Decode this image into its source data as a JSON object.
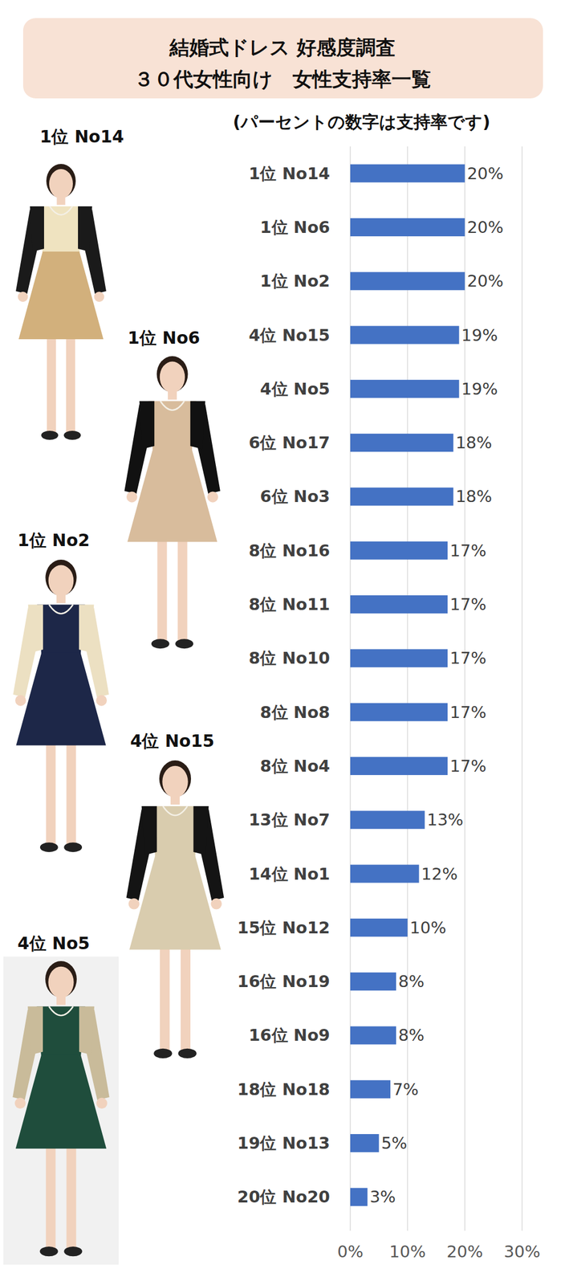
{
  "chart_data": {
    "type": "bar",
    "title": "結婚式ドレス 好感度調査",
    "subtitle": "３０代女性向け　女性支持率一覧",
    "annotations": [
      "(パーセントの数字は支持率です)",
      "1位  No14",
      "1位  No6",
      "1位  No2",
      "4位  No15",
      "4位  No5"
    ],
    "orientation": "horizontal",
    "categories": [
      "1位 No14",
      "1位 No6",
      "1位 No2",
      "4位 No15",
      "4位 No5",
      "6位 No17",
      "6位 No3",
      "8位 No16",
      "8位 No11",
      "8位 No10",
      "8位 No8",
      "8位 No4",
      "13位 No7",
      "14位 No1",
      "15位 No12",
      "16位 No19",
      "16位 No9",
      "18位 No18",
      "19位 No13",
      "20位 No20"
    ],
    "values": [
      20,
      20,
      20,
      19,
      19,
      18,
      18,
      17,
      17,
      17,
      17,
      17,
      13,
      12,
      10,
      8,
      8,
      7,
      5,
      3
    ],
    "value_labels": [
      "20%",
      "20%",
      "20%",
      "19%",
      "19%",
      "18%",
      "18%",
      "17%",
      "17%",
      "17%",
      "17%",
      "17%",
      "13%",
      "12%",
      "10%",
      "8%",
      "8%",
      "7%",
      "5%",
      "3%"
    ],
    "color": "#4472c4",
    "xlim": [
      0,
      30
    ],
    "xticks": [
      {
        "value": 0,
        "label": "0%"
      },
      {
        "value": 10,
        "label": "10%"
      },
      {
        "value": 20,
        "label": "20%"
      },
      {
        "value": 30,
        "label": "30%"
      }
    ],
    "grid": true,
    "data_labels": true
  }
}
